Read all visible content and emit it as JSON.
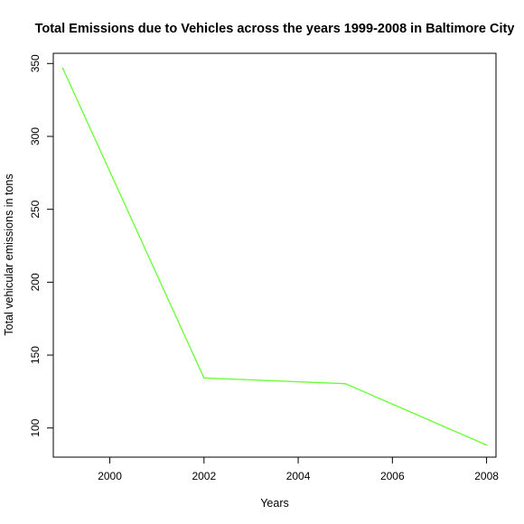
{
  "chart_data": {
    "type": "line",
    "title": "Total Emissions due to Vehicles across the years 1999-2008 in Baltimore City",
    "xlabel": "Years",
    "ylabel": "Total vehicular emissions in tons",
    "x": [
      1999,
      2002,
      2005,
      2008
    ],
    "series": [
      {
        "values": [
          346.8,
          134.3,
          130.4,
          88.3
        ],
        "color": "#66ff33"
      }
    ],
    "xlim": [
      1998.8,
      2008.2
    ],
    "ylim": [
      80,
      357
    ],
    "xticks": [
      "2000",
      "2002",
      "2004",
      "2006",
      "2008"
    ],
    "yticks": [
      "100",
      "150",
      "200",
      "250",
      "300",
      "350"
    ],
    "grid": false,
    "legend": "none"
  }
}
